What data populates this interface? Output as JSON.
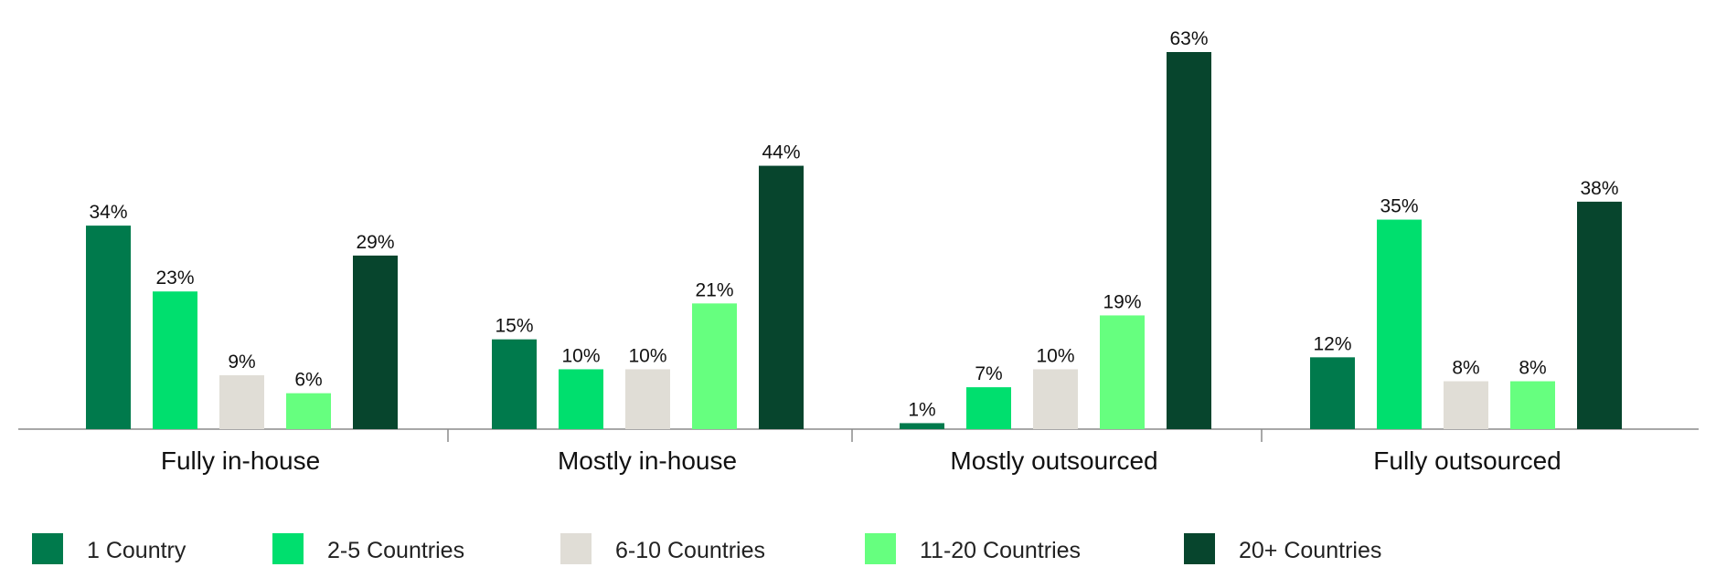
{
  "chart_data": {
    "type": "bar",
    "categories": [
      "Fully in-house",
      "Mostly in-house",
      "Mostly outsourced",
      "Fully outsourced"
    ],
    "series": [
      {
        "name": "1 Country",
        "color": "#007a4c",
        "values": [
          34,
          15,
          1,
          12
        ],
        "labels": [
          "34%",
          "15%",
          "1%",
          "12%"
        ]
      },
      {
        "name": "2-5 Countries",
        "color": "#00df6e",
        "values": [
          23,
          10,
          7,
          35
        ],
        "labels": [
          "23%",
          "10%",
          "7%",
          "35%"
        ]
      },
      {
        "name": "6-10 Countries",
        "color": "#e0ddd6",
        "values": [
          9,
          10,
          10,
          8
        ],
        "labels": [
          "9%",
          "10%",
          "10%",
          "8%"
        ]
      },
      {
        "name": "11-20 Countries",
        "color": "#66ff7f",
        "values": [
          6,
          21,
          19,
          8
        ],
        "labels": [
          "6%",
          "21%",
          "19%",
          "8%"
        ]
      },
      {
        "name": "20+ Countries",
        "color": "#07452d",
        "values": [
          29,
          44,
          63,
          38
        ],
        "labels": [
          "29%",
          "44%",
          "63%",
          "38%"
        ]
      }
    ],
    "ylim": [
      0,
      63
    ],
    "grid": false,
    "legend_position": "bottom"
  }
}
